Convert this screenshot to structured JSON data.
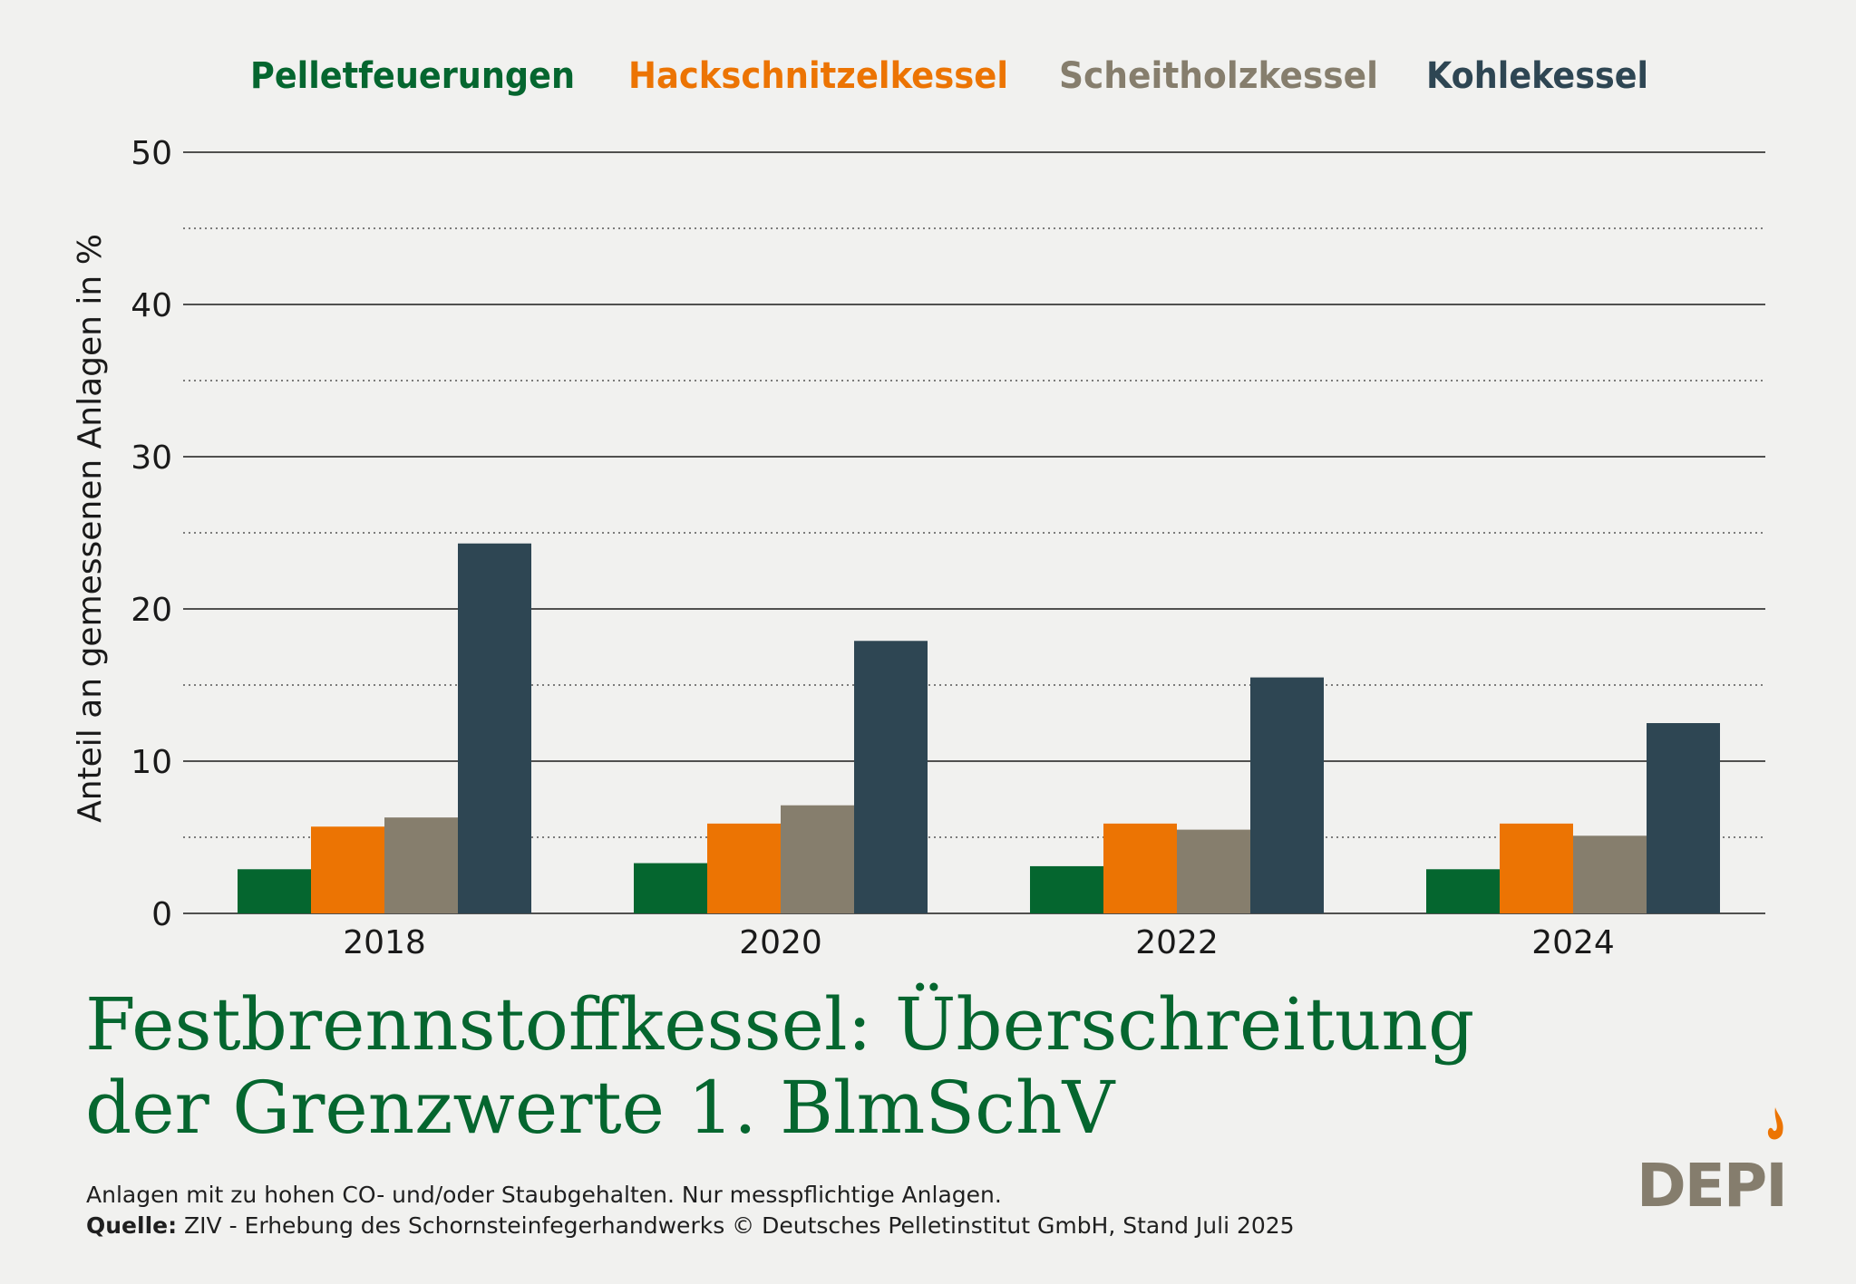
{
  "chart_data": {
    "type": "bar",
    "categories": [
      "2018",
      "2020",
      "2022",
      "2024"
    ],
    "series": [
      {
        "name": "Pelletfeuerungen",
        "color": "#05662f",
        "values": [
          2.9,
          3.3,
          3.1,
          2.9
        ]
      },
      {
        "name": "Hackschnitzelkessel",
        "color": "#ec7403",
        "values": [
          5.7,
          5.9,
          5.9,
          5.9
        ]
      },
      {
        "name": "Scheitholzkessel",
        "color": "#867e6d",
        "values": [
          6.3,
          7.1,
          5.5,
          5.1
        ]
      },
      {
        "name": "Kohlekessel",
        "color": "#2e4653",
        "values": [
          24.3,
          17.9,
          15.5,
          12.5
        ]
      }
    ],
    "ylabel": "Anteil an gemessenen Anlagen in %",
    "xlabel": "",
    "ylim": [
      0,
      50
    ],
    "yticks": [
      0,
      10,
      20,
      30,
      40,
      50
    ],
    "grid": true,
    "legend_position": "top"
  },
  "title": {
    "line1": "Festbrennstoffkessel: Überschreitung",
    "line2": "der Grenzwerte 1. BlmSchV"
  },
  "footnote": {
    "note": "Anlagen mit zu hohen CO- und/oder Staubgehalten. Nur messpflichtige Anlagen.",
    "source_label": "Quelle:",
    "source_text": " ZIV - Erhebung des Schornsteinfegerhandwerks © Deutsches Pelletinstitut GmbH, Stand Juli 2025"
  },
  "logo": {
    "text": "DEPI",
    "text_color": "#857d6d",
    "flame_color": "#ec7403",
    "icon": "flame-icon"
  },
  "colors": {
    "background": "#f1f1ef",
    "title": "#05662f"
  }
}
